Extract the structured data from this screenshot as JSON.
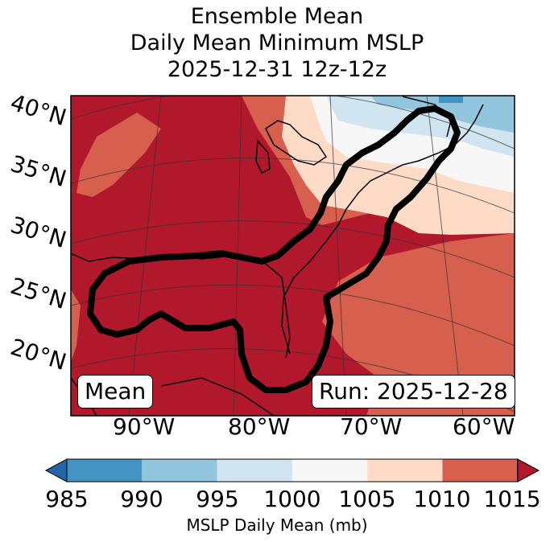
{
  "title": {
    "line1": "Ensemble Mean",
    "line2": "Daily Mean Minimum MSLP",
    "line3": "2025-12-31 12z-12z"
  },
  "lat_labels": [
    "40°N",
    "35°N",
    "30°N",
    "25°N",
    "20°N"
  ],
  "lon_labels": [
    "90°W",
    "80°W",
    "70°W",
    "60°W"
  ],
  "mean_box": "Mean",
  "run_box": "Run: 2025-12-28",
  "colorbar": {
    "label": "MSLP Daily Mean (mb)",
    "ticks": [
      "985",
      "990",
      "995",
      "1000",
      "1005",
      "1010",
      "1015"
    ],
    "colors": [
      "#2166ac",
      "#4393c3",
      "#92c5de",
      "#d1e5f0",
      "#f7f7f7",
      "#fddbc7",
      "#d6604d",
      "#b2182b"
    ]
  },
  "levels_mb": [
    985,
    990,
    995,
    1000,
    1005,
    1010,
    1015
  ]
}
